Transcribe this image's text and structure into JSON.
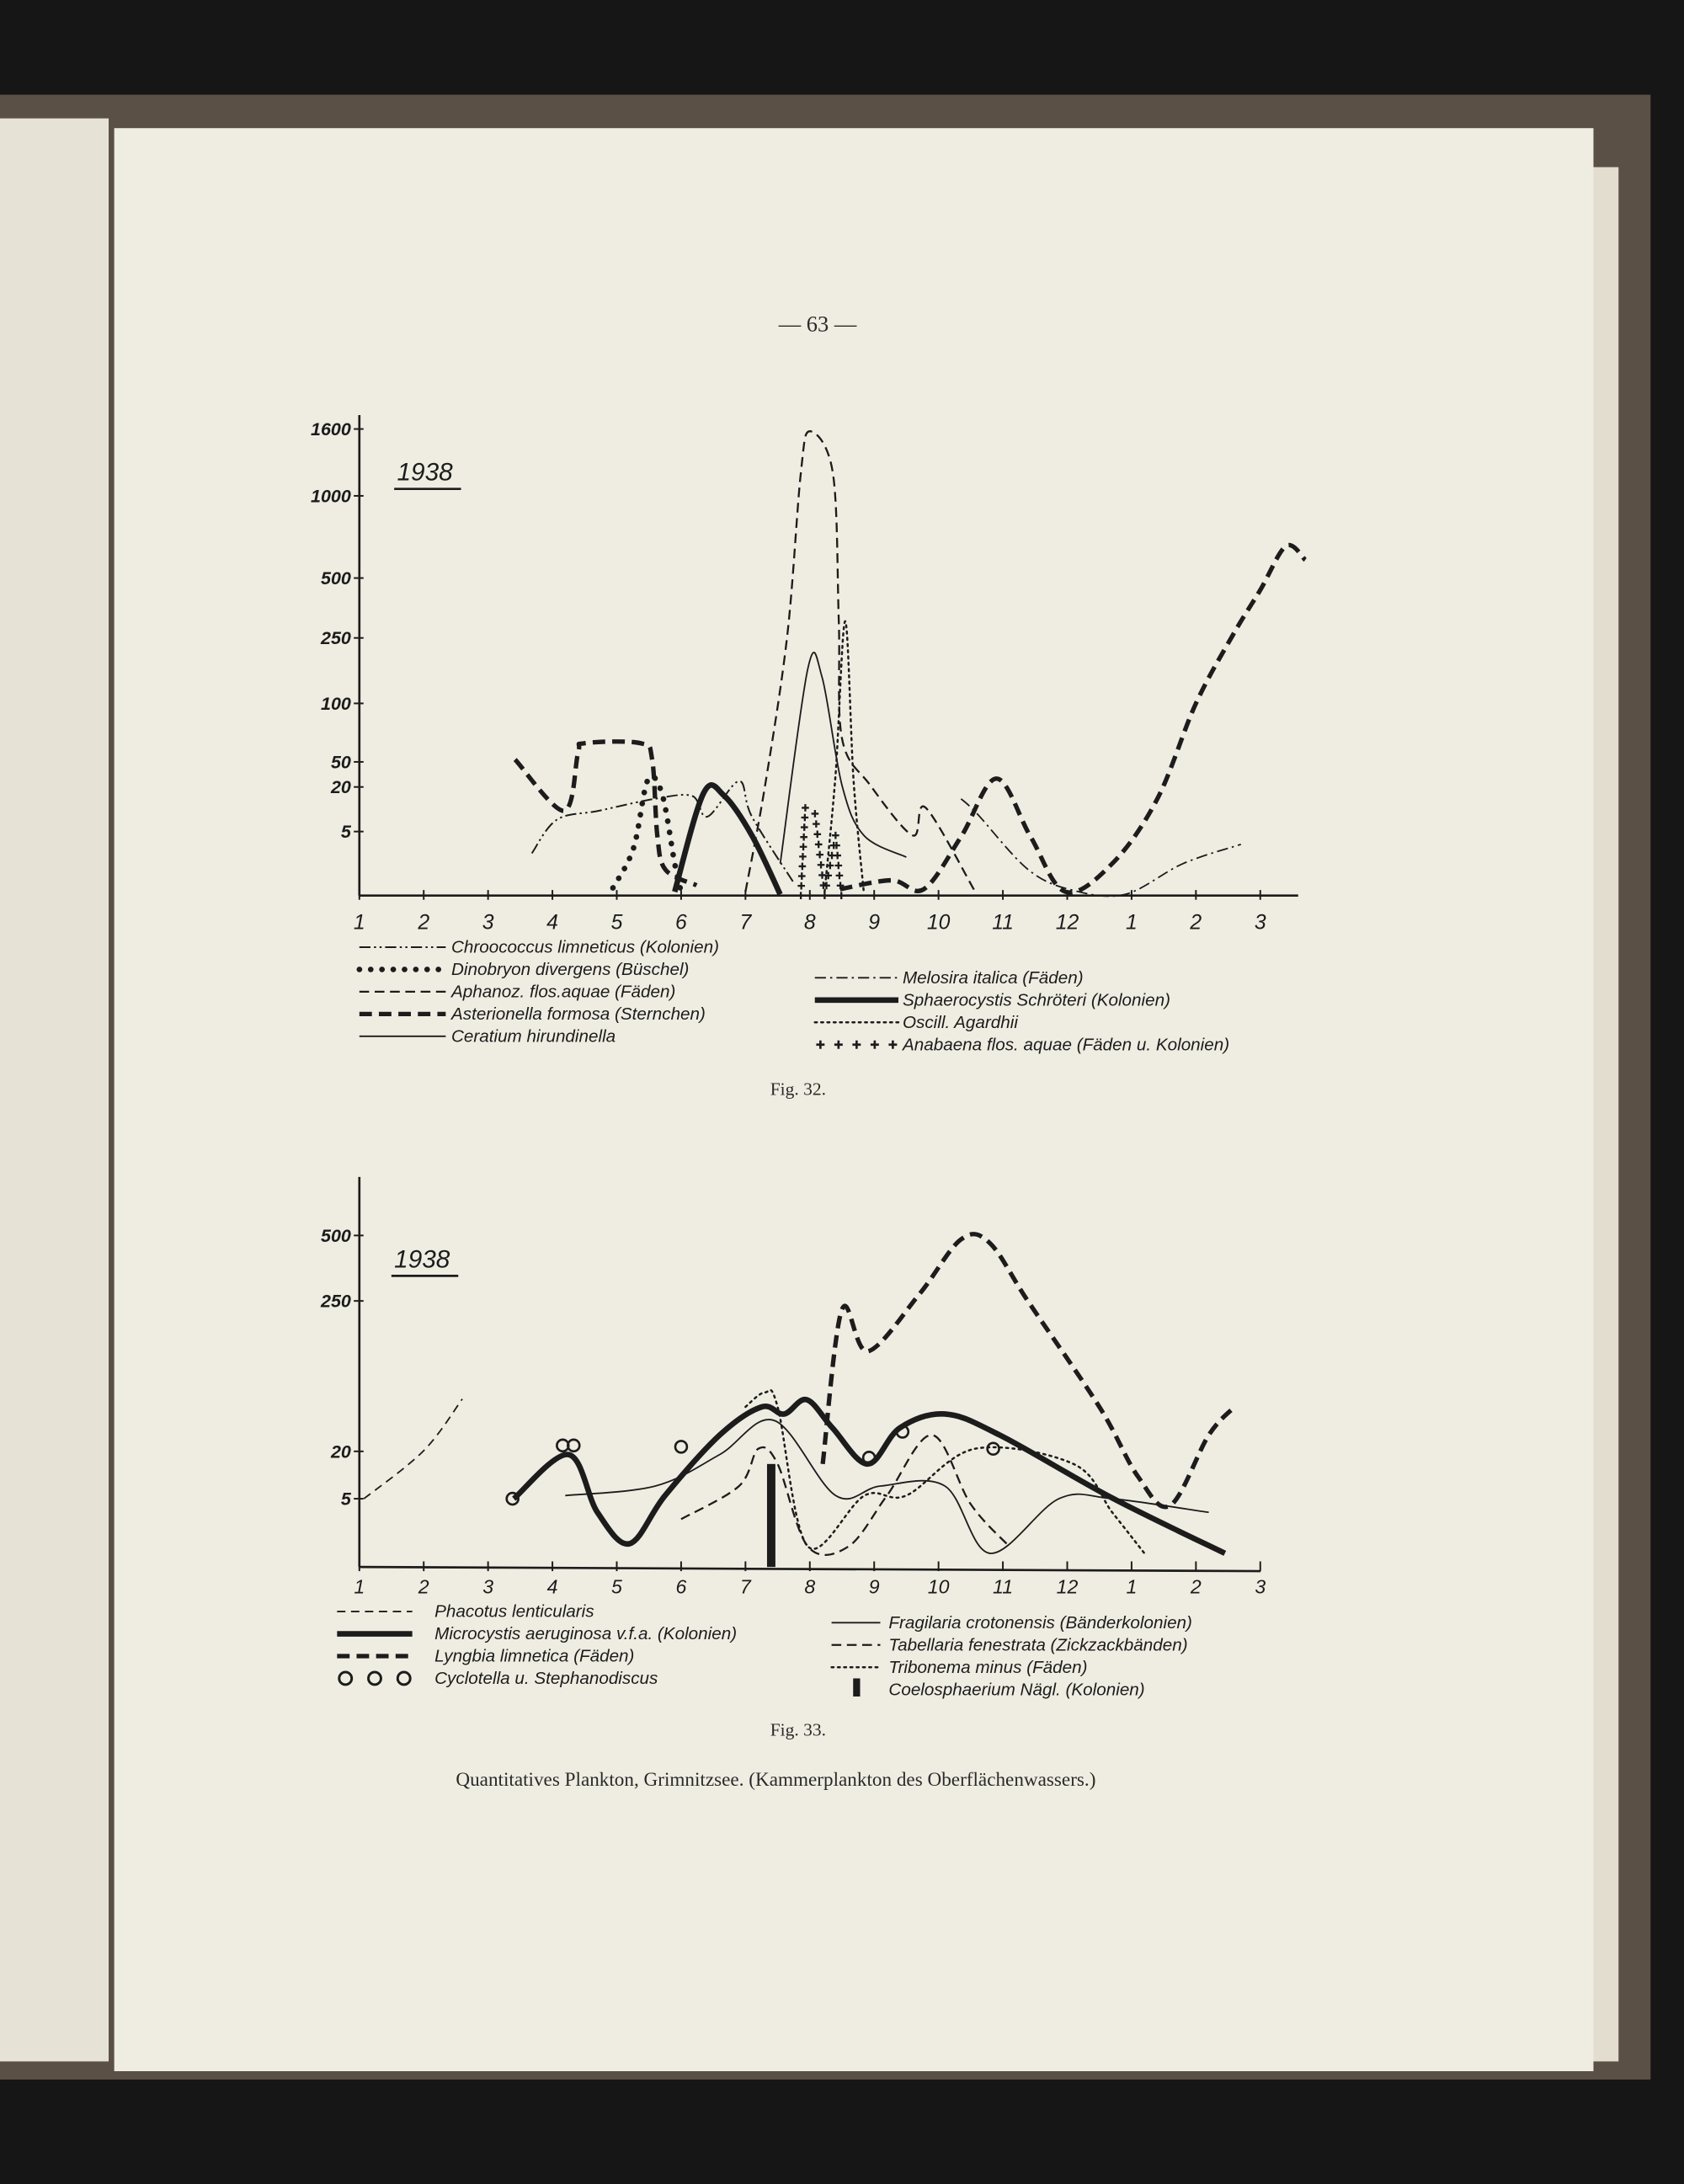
{
  "page_number": "— 63 —",
  "colors": {
    "ink": "#1c1c1c",
    "paper": "#efede2",
    "background": "#161616",
    "binding": "#5a5046"
  },
  "chart_data": [
    {
      "type": "line",
      "figure_label": "Fig. 32.",
      "year_label": "1938",
      "y_scale": "non-uniform (compressed upper range)",
      "grid": false,
      "legend_placement": "bottom",
      "xticks": [
        "1",
        "2",
        "3",
        "4",
        "5",
        "6",
        "7",
        "8",
        "9",
        "10",
        "11",
        "12",
        "1",
        "2",
        "3"
      ],
      "yticks": [
        "1600",
        "1000",
        "500",
        "250",
        "100",
        "50",
        "20",
        "5"
      ],
      "ytick_values": [
        1600,
        1000,
        500,
        250,
        100,
        50,
        20,
        5
      ],
      "series": [
        {
          "name": "Chroococcus limneticus (Kolonien)",
          "style": "dash-dot-dot",
          "points": [
            [
              3.68,
              3.3
            ],
            [
              4.07,
              9
            ],
            [
              4.72,
              12
            ],
            [
              5.59,
              16
            ],
            [
              6.17,
              17
            ],
            [
              6.41,
              10
            ],
            [
              6.9,
              27
            ],
            [
              7.1,
              10
            ],
            [
              7.75,
              1
            ]
          ]
        },
        {
          "name": "Dinobryon divergens (Büschel)",
          "style": "heavy-dots",
          "points": [
            [
              4.94,
              0.6
            ],
            [
              5.26,
              3.7
            ],
            [
              5.48,
              28
            ],
            [
              5.7,
              18
            ],
            [
              5.9,
              2.5
            ],
            [
              6.0,
              0.3
            ]
          ]
        },
        {
          "name": "Aphanoz. flos.aquae (Fäden)",
          "style": "dashed",
          "points": [
            [
              7.0,
              0.3
            ],
            [
              7.3,
              20
            ],
            [
              7.65,
              260
            ],
            [
              7.86,
              1200
            ],
            [
              8.0,
              1580
            ],
            [
              8.36,
              1200
            ],
            [
              8.45,
              320
            ],
            [
              8.5,
              70
            ],
            [
              8.94,
              22
            ],
            [
              9.6,
              4.7
            ],
            [
              9.8,
              13
            ],
            [
              10.57,
              0.3
            ]
          ]
        },
        {
          "name": "Asterionella formosa (Sternchen)",
          "style": "heavy-dashed",
          "points": [
            [
              3.42,
              52
            ],
            [
              4.18,
              12
            ],
            [
              4.4,
              58
            ],
            [
              4.5,
              66
            ],
            [
              5.37,
              66
            ],
            [
              5.55,
              52
            ],
            [
              5.63,
              4.7
            ],
            [
              5.76,
              2
            ],
            [
              6.24,
              0.8
            ]
          ]
        },
        {
          "name": "Asterionella formosa (Sternchen)",
          "style": "heavy-dashed",
          "legend": false,
          "points": [
            [
              8.47,
              0.5
            ],
            [
              9.27,
              1.2
            ],
            [
              9.77,
              0.5
            ],
            [
              10.35,
              4.6
            ],
            [
              10.9,
              30
            ],
            [
              11.43,
              4.6
            ],
            [
              11.97,
              0.3
            ],
            [
              12.7,
              2.5
            ],
            [
              13.4,
              16
            ],
            [
              14.0,
              100
            ],
            [
              14.57,
              260
            ],
            [
              15.0,
              450
            ],
            [
              15.4,
              695
            ],
            [
              15.7,
              610
            ]
          ]
        },
        {
          "name": "Ceratium hirundinella",
          "style": "solid",
          "points": [
            [
              7.54,
              2.5
            ],
            [
              7.97,
              180
            ],
            [
              8.19,
              160
            ],
            [
              8.5,
              22
            ],
            [
              8.84,
              4.7
            ],
            [
              9.5,
              3
            ]
          ]
        },
        {
          "name": "Melosira italica (Fäden)",
          "style": "dash-dot",
          "points": [
            [
              10.35,
              16
            ],
            [
              10.6,
              11
            ],
            [
              11.4,
              2
            ],
            [
              12.1,
              0.4
            ],
            [
              12.9,
              0.1
            ],
            [
              13.8,
              2.5
            ],
            [
              14.7,
              4
            ]
          ]
        },
        {
          "name": "Sphaerocystis Schröteri (Kolonien)",
          "style": "heavy-solid",
          "points": [
            [
              5.9,
              0.3
            ],
            [
              6.35,
              18
            ],
            [
              6.67,
              17
            ],
            [
              7.1,
              4.7
            ],
            [
              7.54,
              0.1
            ]
          ]
        },
        {
          "name": "Oscill. Agardhii",
          "style": "dotted",
          "points": [
            [
              8.23,
              0.3
            ],
            [
              8.4,
              35
            ],
            [
              8.55,
              320
            ],
            [
              8.68,
              28
            ],
            [
              8.84,
              0.2
            ]
          ]
        },
        {
          "name": "Anabaena flos. aquae (Fäden u. Kolonien)",
          "style": "crosses",
          "points": [
            [
              7.86,
              0
            ],
            [
              7.93,
              13
            ],
            [
              8.08,
              11
            ],
            [
              8.23,
              0
            ],
            [
              8.4,
              4.7
            ],
            [
              8.49,
              0
            ]
          ]
        }
      ]
    },
    {
      "type": "line",
      "figure_label": "Fig. 33.",
      "year_label": "1938",
      "y_scale": "non-uniform (compressed upper range)",
      "grid": false,
      "legend_placement": "bottom",
      "xticks": [
        "1",
        "2",
        "3",
        "4",
        "5",
        "6",
        "7",
        "8",
        "9",
        "10",
        "11",
        "12",
        "1",
        "2",
        "3"
      ],
      "yticks": [
        "500",
        "250",
        "20",
        "5"
      ],
      "ytick_values": [
        500,
        250,
        20,
        5
      ],
      "series": [
        {
          "name": "Phacotus lenticularis",
          "style": "dashed-thin",
          "points": [
            [
              1.07,
              5
            ],
            [
              2.0,
              21
            ],
            [
              2.6,
              100
            ]
          ]
        },
        {
          "name": "Microcystis aeruginosa v.f.a. (Kolonien)",
          "style": "heavy-solid",
          "points": [
            [
              3.4,
              5
            ],
            [
              4.25,
              19
            ],
            [
              4.7,
              4
            ],
            [
              5.2,
              1.7
            ],
            [
              5.75,
              6
            ],
            [
              6.6,
              45
            ],
            [
              7.25,
              88
            ],
            [
              7.6,
              77
            ],
            [
              7.95,
              99
            ],
            [
              8.35,
              56
            ],
            [
              8.9,
              16
            ],
            [
              9.4,
              56
            ],
            [
              10.1,
              77
            ],
            [
              10.95,
              45
            ],
            [
              12.7,
              5.2
            ],
            [
              14.45,
              1
            ]
          ]
        },
        {
          "name": "Lyngbia limnetica (Fäden)",
          "style": "heavy-dashed",
          "points": [
            [
              8.2,
              16
            ],
            [
              8.5,
              237
            ],
            [
              8.9,
              173
            ],
            [
              9.7,
              275
            ],
            [
              10.35,
              485
            ],
            [
              10.8,
              470
            ],
            [
              11.4,
              248
            ],
            [
              12.5,
              88
            ],
            [
              13.1,
              12
            ],
            [
              13.6,
              4.5
            ],
            [
              14.2,
              45
            ],
            [
              14.6,
              88
            ]
          ]
        },
        {
          "name": "Cyclotella u. Stephanodiscus",
          "style": "circles",
          "points": [
            [
              3.38,
              5
            ],
            [
              4.16,
              29
            ],
            [
              4.33,
              29
            ],
            [
              6.0,
              27
            ],
            [
              8.92,
              18
            ],
            [
              9.44,
              50
            ],
            [
              10.85,
              24
            ]
          ]
        },
        {
          "name": "Fragilaria crotonensis (Bänderkolonien)",
          "style": "solid",
          "points": [
            [
              4.2,
              6
            ],
            [
              5.6,
              9
            ],
            [
              6.6,
              19
            ],
            [
              7.45,
              67
            ],
            [
              8.4,
              6
            ],
            [
              9.1,
              9
            ],
            [
              10.1,
              9
            ],
            [
              10.8,
              1
            ],
            [
              11.87,
              5
            ],
            [
              12.7,
              5
            ],
            [
              14.2,
              4
            ]
          ]
        },
        {
          "name": "Tabellaria fenestrata (Zickzackbänden)",
          "style": "dashed",
          "points": [
            [
              6.0,
              3.5
            ],
            [
              6.9,
              9
            ],
            [
              7.2,
              24
            ],
            [
              7.5,
              16
            ],
            [
              7.97,
              1.5
            ],
            [
              8.6,
              1.5
            ],
            [
              9.2,
              6
            ],
            [
              9.9,
              45
            ],
            [
              10.5,
              4.6
            ],
            [
              11.1,
              1.5
            ]
          ]
        },
        {
          "name": "Tribonema minus (Fäden)",
          "style": "dotted",
          "points": [
            [
              7.0,
              88
            ],
            [
              7.3,
              110
            ],
            [
              7.5,
              88
            ],
            [
              7.97,
              1.5
            ],
            [
              8.85,
              6
            ],
            [
              9.5,
              6
            ],
            [
              10.57,
              24
            ],
            [
              12.1,
              16
            ],
            [
              12.7,
              4
            ],
            [
              13.2,
              1
            ]
          ]
        },
        {
          "name": "Coelosphaerium Nägl. (Kolonien)",
          "style": "bar",
          "points": [
            [
              7.4,
              16
            ]
          ]
        }
      ]
    }
  ],
  "caption": "Quantitatives Plankton, Grimnitzsee. (Kammerplankton des Oberflächenwassers.)"
}
